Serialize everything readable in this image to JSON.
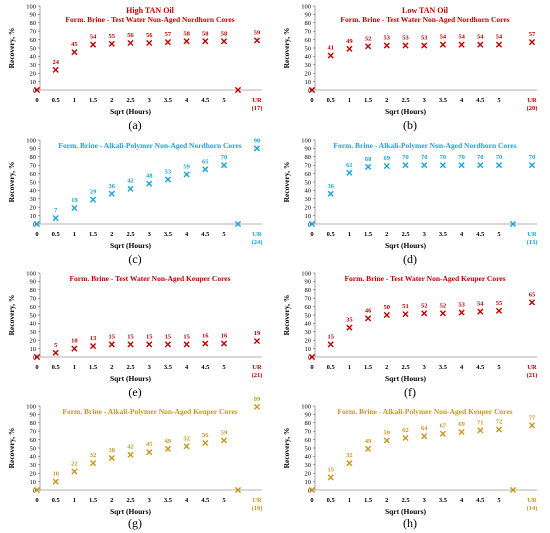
{
  "chart_data": [
    {
      "id": "a",
      "letter": "(a)",
      "type": "scatter",
      "title": "High TAN Oil",
      "subtitle": "Form. Brine - Test Water Non-Aged Nordhorn Cores",
      "xlabel": "Sqrt (Hours)",
      "ylabel": "Recovery, %",
      "ylim": [
        0,
        100
      ],
      "yticks": [
        0,
        10,
        20,
        30,
        40,
        50,
        60,
        70,
        80,
        90,
        100
      ],
      "xticks": [
        "0",
        "0.5",
        "1",
        "1.5",
        "2",
        "2.5",
        "3",
        "3.5",
        "4",
        "4.5",
        "5"
      ],
      "ur_label": "UR",
      "ur_days": "(17)",
      "color": "#c00000",
      "points": [
        {
          "x": 0,
          "y": 0,
          "label": null
        },
        {
          "x": 0.5,
          "y": 24,
          "label": "24"
        },
        {
          "x": 1,
          "y": 45,
          "label": "45"
        },
        {
          "x": 1.5,
          "y": 54,
          "label": "54"
        },
        {
          "x": 2,
          "y": 55,
          "label": "55"
        },
        {
          "x": 2.5,
          "y": 56,
          "label": "56"
        },
        {
          "x": 3,
          "y": 56,
          "label": "56"
        },
        {
          "x": 3.5,
          "y": 57,
          "label": "57"
        },
        {
          "x": 4,
          "y": 58,
          "label": "58"
        },
        {
          "x": 4.5,
          "y": 58,
          "label": "58"
        },
        {
          "x": 5,
          "y": 58,
          "label": "58"
        },
        {
          "x": "gap",
          "y": 0,
          "label": null
        },
        {
          "x": "UR",
          "y": 59,
          "label": "59"
        }
      ]
    },
    {
      "id": "b",
      "letter": "(b)",
      "type": "scatter",
      "title": "Low TAN Oil",
      "subtitle": "Form. Brine - Test Water Non-Aged Nordhorn Cores",
      "xlabel": "Sqrt (Hours)",
      "ylabel": "Recovery, %",
      "ylim": [
        0,
        100
      ],
      "yticks": [
        0,
        10,
        20,
        30,
        40,
        50,
        60,
        70,
        80,
        90,
        100
      ],
      "xticks": [
        "0",
        "0.5",
        "1",
        "1.5",
        "2",
        "2.5",
        "3",
        "3.5",
        "4",
        "4.5",
        "5"
      ],
      "ur_label": "UR",
      "ur_days": "(20)",
      "color": "#c00000",
      "points": [
        {
          "x": 0,
          "y": 0,
          "label": null
        },
        {
          "x": 0.5,
          "y": 41,
          "label": "41"
        },
        {
          "x": 1,
          "y": 49,
          "label": "49"
        },
        {
          "x": 1.5,
          "y": 52,
          "label": "52"
        },
        {
          "x": 2,
          "y": 53,
          "label": "53"
        },
        {
          "x": 2.5,
          "y": 53,
          "label": "53"
        },
        {
          "x": 3,
          "y": 53,
          "label": "53"
        },
        {
          "x": 3.5,
          "y": 54,
          "label": "54"
        },
        {
          "x": 4,
          "y": 54,
          "label": "54"
        },
        {
          "x": 4.5,
          "y": 54,
          "label": "54"
        },
        {
          "x": 5,
          "y": 54,
          "label": "54"
        },
        {
          "x": "UR",
          "y": 57,
          "label": "57"
        }
      ]
    },
    {
      "id": "c",
      "letter": "(c)",
      "type": "scatter",
      "title": "",
      "subtitle": "Form. Brine - Alkali-Polymer Non-Aged Nordhorn Cores",
      "xlabel": "Sqrt (Hours)",
      "ylabel": "Recovery, %",
      "ylim": [
        0,
        100
      ],
      "yticks": [
        0,
        10,
        20,
        30,
        40,
        50,
        60,
        70,
        80,
        90,
        100
      ],
      "xticks": [
        "0",
        "0.5",
        "1",
        "1.5",
        "2",
        "2.5",
        "3",
        "3.5",
        "4",
        "4.5",
        "5"
      ],
      "ur_label": "UR",
      "ur_days": "(24)",
      "color": "#1aa3d9",
      "points": [
        {
          "x": 0,
          "y": 0,
          "label": null
        },
        {
          "x": 0.5,
          "y": 7,
          "label": "7"
        },
        {
          "x": 1,
          "y": 19,
          "label": "19"
        },
        {
          "x": 1.5,
          "y": 29,
          "label": "29"
        },
        {
          "x": 2,
          "y": 36,
          "label": "36"
        },
        {
          "x": 2.5,
          "y": 42,
          "label": "42"
        },
        {
          "x": 3,
          "y": 48,
          "label": "48"
        },
        {
          "x": 3.5,
          "y": 53,
          "label": "53"
        },
        {
          "x": 4,
          "y": 59,
          "label": "59"
        },
        {
          "x": 4.5,
          "y": 65,
          "label": "65"
        },
        {
          "x": 5,
          "y": 70,
          "label": "70"
        },
        {
          "x": "gap",
          "y": 0,
          "label": null
        },
        {
          "x": "UR",
          "y": 90,
          "label": "90"
        }
      ]
    },
    {
      "id": "d",
      "letter": "(d)",
      "type": "scatter",
      "title": "",
      "subtitle": "Form. Brine - Alkali-Polymer Non-Aged Nordhorn Cores",
      "xlabel": "Sqrt (Hours)",
      "ylabel": "Recovery, %",
      "ylim": [
        0,
        100
      ],
      "yticks": [
        0,
        10,
        20,
        30,
        40,
        50,
        60,
        70,
        80,
        90,
        100
      ],
      "xticks": [
        "0",
        "0.5",
        "1",
        "1.5",
        "2",
        "2.5",
        "3",
        "3.5",
        "4",
        "4.5",
        "5"
      ],
      "ur_label": "UR",
      "ur_days": "(13)",
      "color": "#1aa3d9",
      "points": [
        {
          "x": 0,
          "y": 0,
          "label": null
        },
        {
          "x": 0.5,
          "y": 36,
          "label": "36"
        },
        {
          "x": 1,
          "y": 61,
          "label": "61"
        },
        {
          "x": 1.5,
          "y": 68,
          "label": "68"
        },
        {
          "x": 2,
          "y": 69,
          "label": "69"
        },
        {
          "x": 2.5,
          "y": 70,
          "label": "70"
        },
        {
          "x": 3,
          "y": 70,
          "label": "70"
        },
        {
          "x": 3.5,
          "y": 70,
          "label": "70"
        },
        {
          "x": 4,
          "y": 70,
          "label": "70"
        },
        {
          "x": 4.5,
          "y": 70,
          "label": "70"
        },
        {
          "x": 5,
          "y": 70,
          "label": "70"
        },
        {
          "x": "gap",
          "y": 0,
          "label": null
        },
        {
          "x": "UR",
          "y": 70,
          "label": "70"
        }
      ]
    },
    {
      "id": "e",
      "letter": "(e)",
      "type": "scatter",
      "title": "",
      "subtitle": "Form. Brine - Test Water Non-Aged Keuper Cores",
      "xlabel": "Sqrt (Hours)",
      "ylabel": "Recovery, %",
      "ylim": [
        0,
        100
      ],
      "yticks": [
        0,
        10,
        20,
        30,
        40,
        50,
        60,
        70,
        80,
        90,
        100
      ],
      "xticks": [
        "0",
        "0.5",
        "1",
        "1.5",
        "2",
        "2.5",
        "3",
        "3.5",
        "4",
        "4.5",
        "5"
      ],
      "ur_label": "UR",
      "ur_days": "(21)",
      "color": "#c00000",
      "points": [
        {
          "x": 0,
          "y": 0,
          "label": null
        },
        {
          "x": 0.5,
          "y": 5,
          "label": "5"
        },
        {
          "x": 1,
          "y": 10,
          "label": "10"
        },
        {
          "x": 1.5,
          "y": 13,
          "label": "13"
        },
        {
          "x": 2,
          "y": 15,
          "label": "15"
        },
        {
          "x": 2.5,
          "y": 15,
          "label": "15"
        },
        {
          "x": 3,
          "y": 15,
          "label": "15"
        },
        {
          "x": 3.5,
          "y": 15,
          "label": "15"
        },
        {
          "x": 4,
          "y": 15,
          "label": "15"
        },
        {
          "x": 4.5,
          "y": 16,
          "label": "16"
        },
        {
          "x": 5,
          "y": 16,
          "label": "16"
        },
        {
          "x": "UR",
          "y": 19,
          "label": "19"
        }
      ]
    },
    {
      "id": "f",
      "letter": "(f)",
      "type": "scatter",
      "title": "",
      "subtitle": "Form. Brine - Test Water Non-Aged Keuper Cores",
      "xlabel": "Sqrt (Hours)",
      "ylabel": "Recovery, %",
      "ylim": [
        0,
        100
      ],
      "yticks": [
        0,
        10,
        20,
        30,
        40,
        50,
        60,
        70,
        80,
        90,
        100
      ],
      "xticks": [
        "0",
        "0.5",
        "1",
        "1.5",
        "2",
        "2.5",
        "3",
        "3.5",
        "4",
        "4.5",
        "5"
      ],
      "ur_label": "UR",
      "ur_days": "(21)",
      "color": "#c00000",
      "points": [
        {
          "x": 0,
          "y": 0,
          "label": null
        },
        {
          "x": 0.5,
          "y": 15,
          "label": "15"
        },
        {
          "x": 1,
          "y": 35,
          "label": "35"
        },
        {
          "x": 1.5,
          "y": 46,
          "label": "46"
        },
        {
          "x": 2,
          "y": 50,
          "label": "50"
        },
        {
          "x": 2.5,
          "y": 51,
          "label": "51"
        },
        {
          "x": 3,
          "y": 52,
          "label": "52"
        },
        {
          "x": 3.5,
          "y": 52,
          "label": "52"
        },
        {
          "x": 4,
          "y": 53,
          "label": "53"
        },
        {
          "x": 4.5,
          "y": 54,
          "label": "54"
        },
        {
          "x": 5,
          "y": 55,
          "label": "55"
        },
        {
          "x": "UR",
          "y": 65,
          "label": "65"
        }
      ]
    },
    {
      "id": "g",
      "letter": "(g)",
      "type": "scatter",
      "title": "",
      "subtitle": "Form. Brine - Alkali-Polymer Non-Aged Keuper Cores",
      "xlabel": "Sqrt (Hours)",
      "ylabel": "Recovery, %",
      "ylim": [
        0,
        100
      ],
      "yticks": [
        0,
        10,
        20,
        30,
        40,
        50,
        60,
        70,
        80,
        90,
        100
      ],
      "xticks": [
        "0",
        "0.5",
        "1",
        "1.5",
        "2",
        "2.5",
        "3",
        "3.5",
        "4",
        "4.5",
        "5"
      ],
      "ur_label": "UR",
      "ur_days": "(19)",
      "color": "#c8961e",
      "points": [
        {
          "x": 0,
          "y": 0,
          "label": null
        },
        {
          "x": 0.5,
          "y": 10,
          "label": "10"
        },
        {
          "x": 1,
          "y": 22,
          "label": "22"
        },
        {
          "x": 1.5,
          "y": 32,
          "label": "32"
        },
        {
          "x": 2,
          "y": 38,
          "label": "38"
        },
        {
          "x": 2.5,
          "y": 42,
          "label": "42"
        },
        {
          "x": 3,
          "y": 45,
          "label": "45"
        },
        {
          "x": 3.5,
          "y": 49,
          "label": "49"
        },
        {
          "x": 4,
          "y": 52,
          "label": "52"
        },
        {
          "x": 4.5,
          "y": 56,
          "label": "56"
        },
        {
          "x": 5,
          "y": 59,
          "label": "59"
        },
        {
          "x": "gap",
          "y": 0,
          "label": null
        },
        {
          "x": "UR",
          "y": 99,
          "label": "99"
        }
      ]
    },
    {
      "id": "h",
      "letter": "(h)",
      "type": "scatter",
      "title": "",
      "subtitle": "Form. Brine - Alkali-Polymer Non-Aged Keuper Cores",
      "xlabel": "Sqrt (Hours)",
      "ylabel": "Recovery, %",
      "ylim": [
        0,
        100
      ],
      "yticks": [
        0,
        10,
        20,
        30,
        40,
        50,
        60,
        70,
        80,
        90,
        100
      ],
      "xticks": [
        "0",
        "0.5",
        "1",
        "1.5",
        "2",
        "2.5",
        "3",
        "3.5",
        "4",
        "4.5",
        "5"
      ],
      "ur_label": "UR",
      "ur_days": "(14)",
      "color": "#c8961e",
      "points": [
        {
          "x": 0,
          "y": 0,
          "label": null
        },
        {
          "x": 0.5,
          "y": 15,
          "label": "15"
        },
        {
          "x": 1,
          "y": 32,
          "label": "32"
        },
        {
          "x": 1.5,
          "y": 49,
          "label": "49"
        },
        {
          "x": 2,
          "y": 59,
          "label": "59"
        },
        {
          "x": 2.5,
          "y": 62,
          "label": "62"
        },
        {
          "x": 3,
          "y": 64,
          "label": "64"
        },
        {
          "x": 3.5,
          "y": 67,
          "label": "67"
        },
        {
          "x": 4,
          "y": 69,
          "label": "69"
        },
        {
          "x": 4.5,
          "y": 71,
          "label": "71"
        },
        {
          "x": 5,
          "y": 72,
          "label": "72"
        },
        {
          "x": "gap",
          "y": 0,
          "label": null
        },
        {
          "x": "UR",
          "y": 77,
          "label": "77"
        }
      ]
    }
  ]
}
